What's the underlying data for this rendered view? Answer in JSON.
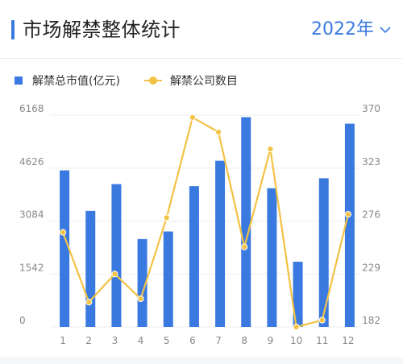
{
  "header": {
    "title": "市场解禁整体统计",
    "year": "2022年"
  },
  "colors": {
    "accent": "#3a7ae0",
    "bar": "#3a7ae0",
    "line": "#f3c244"
  },
  "icons": {
    "year_dropdown": "chevron-down-icon"
  },
  "chart_data": {
    "type": "bar",
    "categories": [
      "1",
      "2",
      "3",
      "4",
      "5",
      "6",
      "7",
      "8",
      "9",
      "10",
      "11",
      "12"
    ],
    "series": [
      {
        "name": "解禁总市值(亿元)",
        "type": "bar",
        "axis": "left",
        "values": [
          4560,
          3380,
          4160,
          2560,
          2780,
          4100,
          4840,
          6110,
          4040,
          1900,
          4330,
          5920
        ]
      },
      {
        "name": "解禁公司数目",
        "type": "line",
        "axis": "right",
        "values": [
          266,
          204,
          229,
          207,
          279,
          368,
          355,
          253,
          340,
          182,
          188,
          282
        ]
      }
    ],
    "left_axis": {
      "ticks": [
        "0",
        "1542",
        "3084",
        "4626",
        "6168"
      ],
      "ylim": [
        0,
        6168
      ]
    },
    "right_axis": {
      "ticks": [
        "182",
        "229",
        "276",
        "323",
        "370"
      ],
      "ylim": [
        182,
        370
      ]
    },
    "legend_position": "top-left",
    "grid": true
  }
}
